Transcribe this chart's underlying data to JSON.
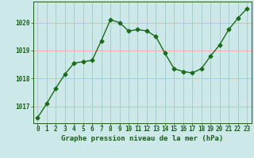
{
  "x": [
    0,
    1,
    2,
    3,
    4,
    5,
    6,
    7,
    8,
    9,
    10,
    11,
    12,
    13,
    14,
    15,
    16,
    17,
    18,
    19,
    20,
    21,
    22,
    23
  ],
  "y": [
    1016.6,
    1017.1,
    1017.65,
    1018.15,
    1018.55,
    1018.6,
    1018.65,
    1019.35,
    1020.1,
    1020.0,
    1019.7,
    1019.75,
    1019.7,
    1019.5,
    1018.9,
    1018.35,
    1018.25,
    1018.2,
    1018.35,
    1018.8,
    1019.2,
    1019.75,
    1020.15,
    1020.5
  ],
  "line_color": "#1a6b1a",
  "marker": "D",
  "marker_size": 2.5,
  "line_width": 1.0,
  "bg_color": "#cce8e8",
  "grid_color_h": "#ffaaaa",
  "grid_color_v": "#aacccc",
  "xlabel": "Graphe pression niveau de la mer (hPa)",
  "xlabel_color": "#1a5e1a",
  "xlabel_fontsize": 6.5,
  "tick_color": "#1a5e1a",
  "tick_fontsize": 5.5,
  "ylim": [
    1016.4,
    1020.75
  ],
  "yticks": [
    1017,
    1018,
    1019,
    1020
  ],
  "xlim": [
    -0.5,
    23.5
  ]
}
